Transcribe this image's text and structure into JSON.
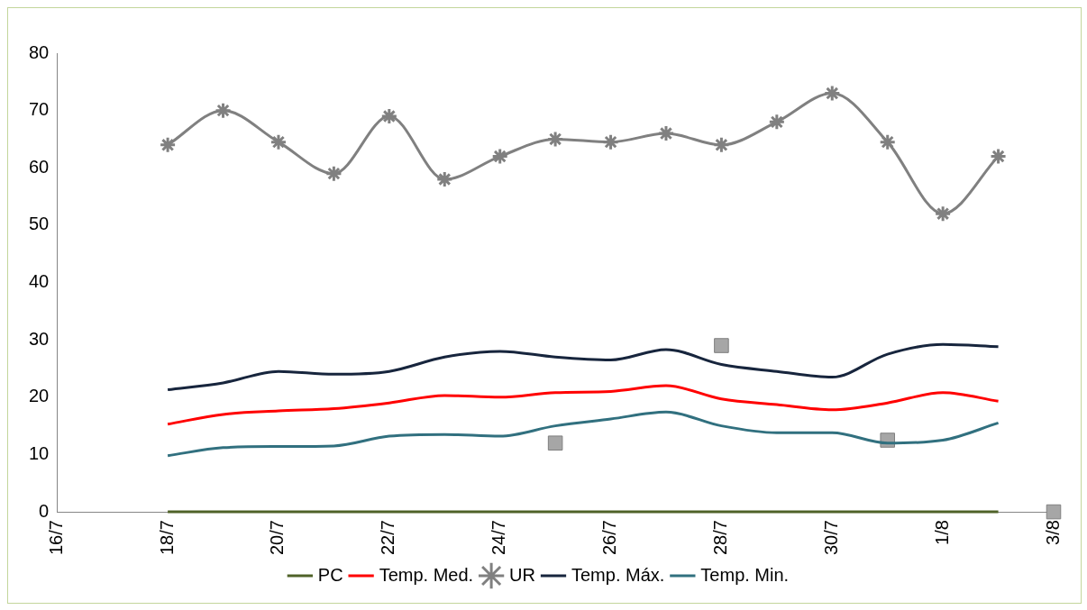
{
  "chart_data": {
    "type": "line",
    "x": [
      "--07-18",
      "--07-19",
      "--07-20",
      "--07-21",
      "--07-22",
      "--07-23",
      "--07-24",
      "--07-25",
      "--07-26",
      "--07-27",
      "--07-28",
      "--07-29",
      "--07-30",
      "--07-31",
      "--08-01",
      "--08-02"
    ],
    "series": [
      {
        "name": "PC",
        "color": "#4f6228",
        "marker": "none",
        "values": [
          0,
          0,
          0,
          0,
          0,
          0,
          0,
          0,
          0,
          0,
          0,
          0,
          0,
          0,
          0,
          0
        ]
      },
      {
        "name": "Temp. Med.",
        "color": "#ff0000",
        "marker": "none",
        "values": [
          15.3,
          17,
          17.6,
          18,
          19,
          20.3,
          20,
          20.8,
          21,
          22,
          19.7,
          18.7,
          17.8,
          19,
          20.8,
          19.3
        ]
      },
      {
        "name": "UR",
        "color": "#808080",
        "marker": "cross",
        "values": [
          64,
          70,
          64.5,
          59,
          69,
          58,
          62,
          65,
          64.5,
          66,
          64,
          68,
          73,
          64.5,
          52,
          62
        ]
      },
      {
        "name": "Temp. Máx.",
        "color": "#17253d",
        "marker": "none",
        "values": [
          21.3,
          22.5,
          24.5,
          24,
          24.5,
          27,
          28,
          27,
          26.5,
          28.3,
          25.7,
          24.5,
          23.5,
          27.5,
          29.2,
          28.8
        ]
      },
      {
        "name": "Temp. Min.",
        "color": "#31707f",
        "marker": "none",
        "values": [
          9.8,
          11.2,
          11.4,
          11.5,
          13.2,
          13.5,
          13.2,
          15,
          16.2,
          17.4,
          15,
          13.8,
          13.8,
          12,
          12.5,
          15.5
        ]
      },
      {
        "type": "scatter",
        "color": "#a6a6a6",
        "marker": "square",
        "x": [
          "--07-25",
          "--07-28",
          "--07-31",
          "--08-03"
        ],
        "values": [
          12,
          29,
          12.5,
          0
        ]
      }
    ],
    "xlim": [
      "--07-16",
      "--08-03"
    ],
    "xticks": [
      {
        "value": "--07-16",
        "label": "16/7"
      },
      {
        "value": "--07-18",
        "label": "18/7"
      },
      {
        "value": "--07-20",
        "label": "20/7"
      },
      {
        "value": "--07-22",
        "label": "22/7"
      },
      {
        "value": "--07-24",
        "label": "24/7"
      },
      {
        "value": "--07-26",
        "label": "26/7"
      },
      {
        "value": "--07-28",
        "label": "28/7"
      },
      {
        "value": "--07-30",
        "label": "30/7"
      },
      {
        "value": "--08-01",
        "label": "1/8"
      },
      {
        "value": "--08-03",
        "label": "3/8"
      }
    ],
    "ylim": [
      0,
      80
    ],
    "yticks": [
      0,
      10,
      20,
      30,
      40,
      50,
      60,
      70,
      80
    ],
    "grid": false,
    "legend": "bottom"
  }
}
